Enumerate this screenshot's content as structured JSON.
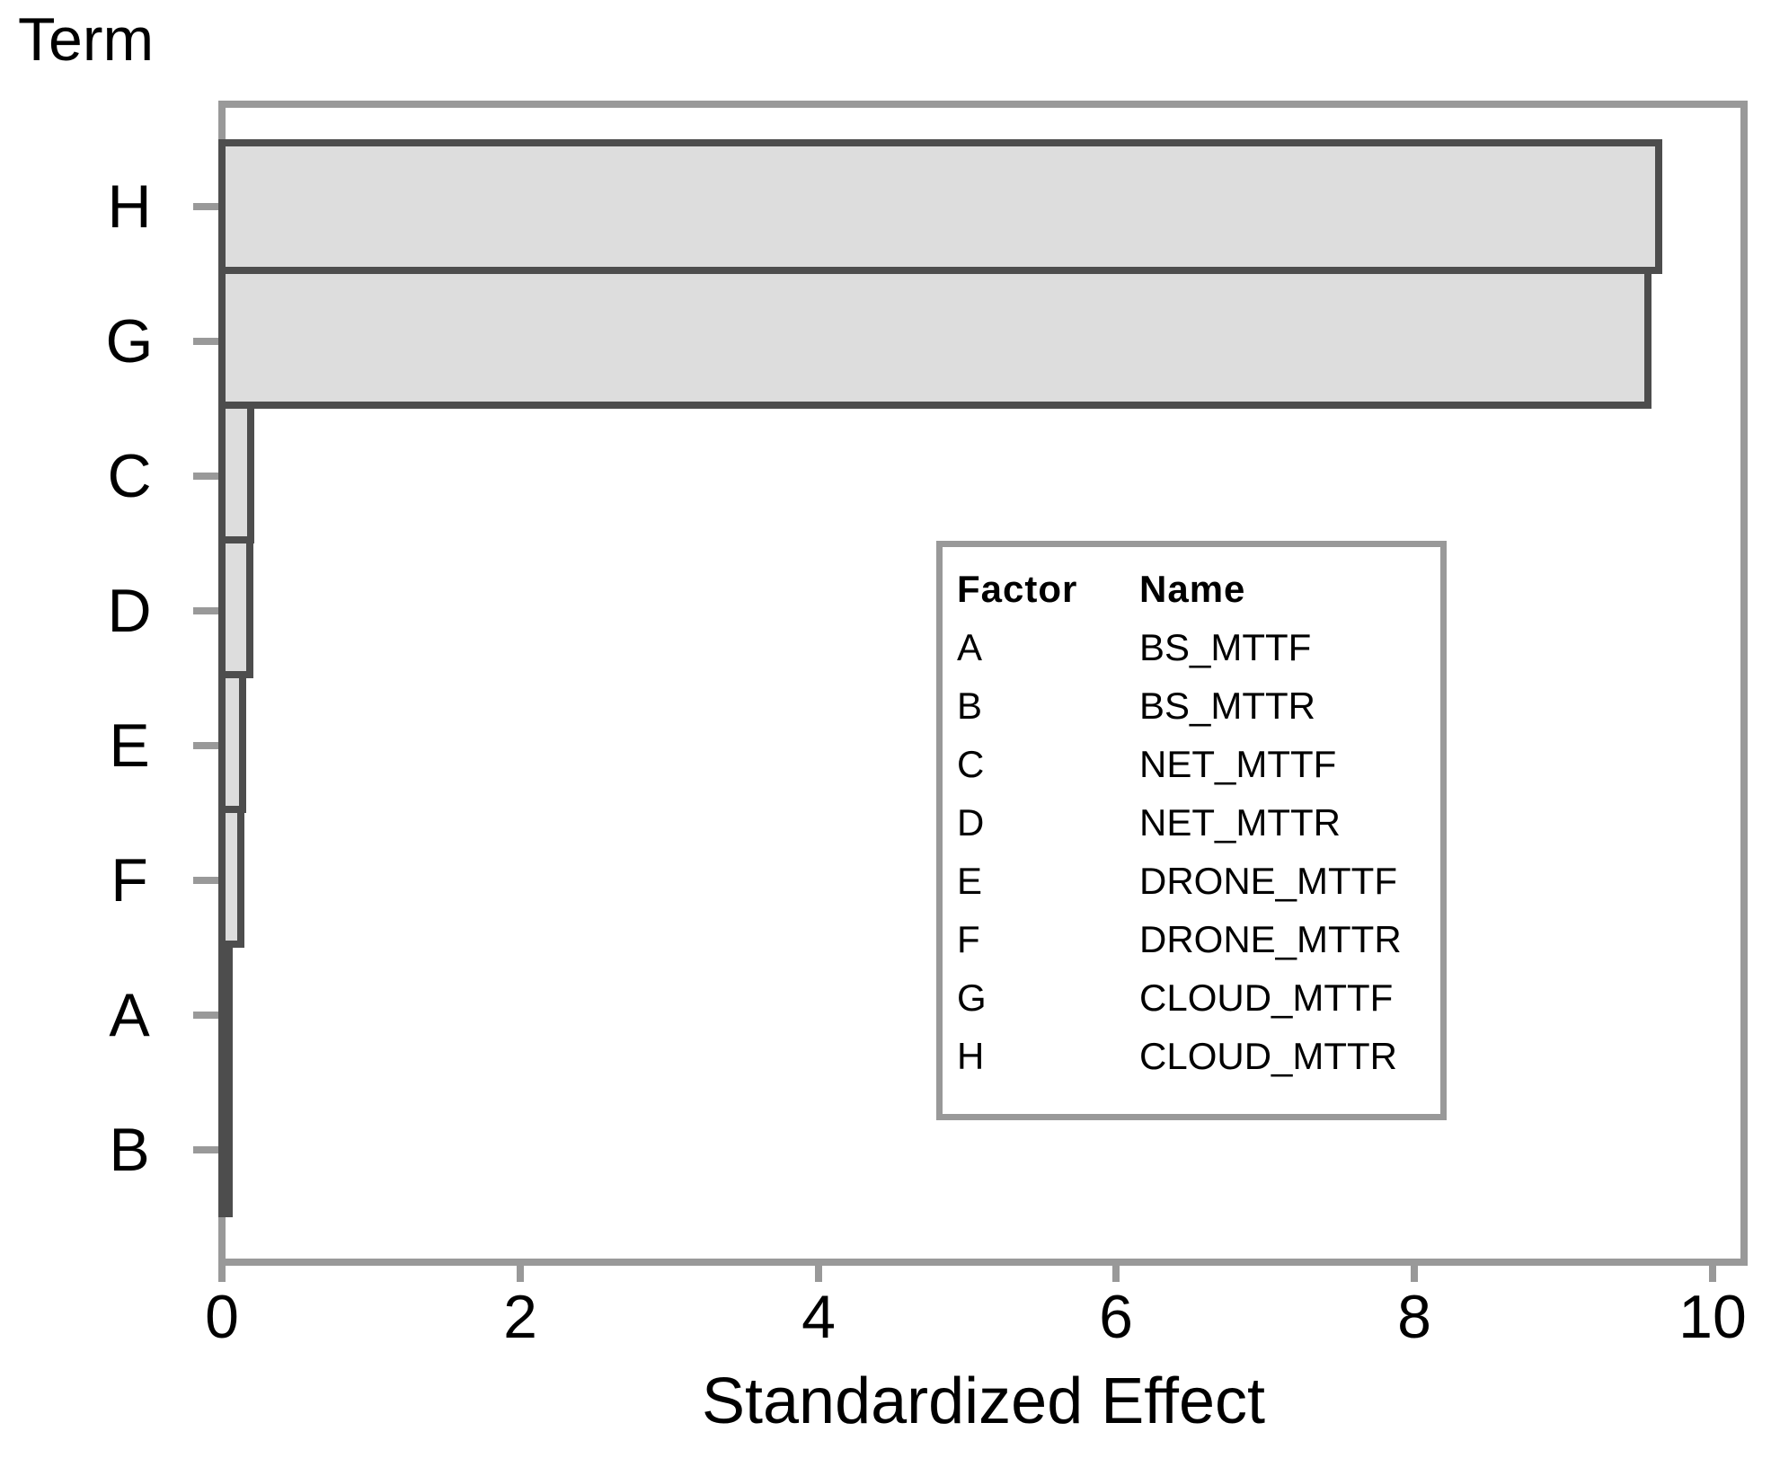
{
  "chart_data": {
    "type": "bar",
    "orientation": "horizontal",
    "title": "",
    "xlabel": "Standardized Effect",
    "ylabel": "Term",
    "categories": [
      "H",
      "G",
      "C",
      "D",
      "E",
      "F",
      "A",
      "B"
    ],
    "values": [
      9.66,
      9.59,
      0.22,
      0.21,
      0.16,
      0.15,
      0.06,
      0.04
    ],
    "xticks": [
      0,
      2,
      4,
      6,
      8,
      10
    ],
    "xlim": [
      0,
      10.2
    ],
    "grid": false,
    "legend_position": "inside-right",
    "colors": {
      "bar_fill": "#dddddd",
      "bar_border": "#4d4d4d",
      "axis_gray": "#999999",
      "text": "#000000"
    },
    "legend": {
      "headers": [
        "Factor",
        "Name"
      ],
      "rows": [
        {
          "factor": "A",
          "name": "BS_MTTF"
        },
        {
          "factor": "B",
          "name": "BS_MTTR"
        },
        {
          "factor": "C",
          "name": "NET_MTTF"
        },
        {
          "factor": "D",
          "name": "NET_MTTR"
        },
        {
          "factor": "E",
          "name": "DRONE_MTTF"
        },
        {
          "factor": "F",
          "name": "DRONE_MTTR"
        },
        {
          "factor": "G",
          "name": "CLOUD_MTTF"
        },
        {
          "factor": "H",
          "name": "CLOUD_MTTR"
        }
      ]
    }
  }
}
